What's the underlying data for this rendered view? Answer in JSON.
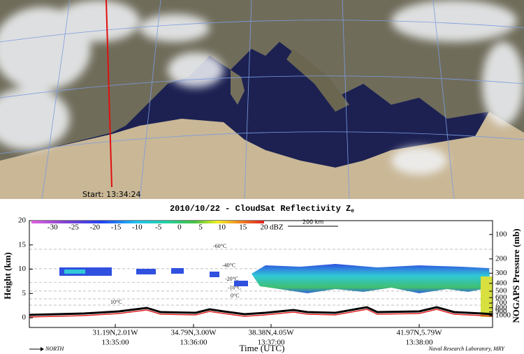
{
  "map": {
    "start_label": "Start: 13:34:24"
  },
  "chart_data": {
    "type": "profile",
    "title": "2010/10/22 - CloudSat Reflectivity Z",
    "title_subscript": "e",
    "ylabel": "Height (km)",
    "y2label": "NOGAPS Pressure (mb)",
    "xlabel": "Time (UTC)",
    "ylim": [
      -2,
      20
    ],
    "yticks": [
      0,
      5,
      10,
      15,
      20
    ],
    "y2scale": "log",
    "y2lim": [
      1400,
      67.5
    ],
    "y2ticks": [
      100,
      200,
      300,
      400,
      500,
      600,
      700,
      800,
      900,
      1000
    ],
    "xticks": [
      {
        "time": "13:35:00",
        "location": "31.19N,2.01W"
      },
      {
        "time": "13:36:00",
        "location": "34.79N,3.00W"
      },
      {
        "time": "13:37:00",
        "location": "38.38N,4.05W"
      },
      {
        "time": "13:38:00",
        "location": "41.97N,5.79W"
      }
    ],
    "colorbar": {
      "lim": [
        -35,
        20
      ],
      "ticks": [
        -30,
        -25,
        -20,
        -15,
        -10,
        -5,
        0,
        5,
        10,
        15,
        20
      ],
      "unit": "dBZ"
    },
    "scale_bar": "200 km",
    "isotherms": [
      {
        "label": "-60°C",
        "height": 14.1
      },
      {
        "label": "-40°C",
        "height": 10.1
      },
      {
        "label": "-20°C",
        "height": 7.3
      },
      {
        "label": "-10°C",
        "height": 5.5
      },
      {
        "label": "0°C",
        "height": 3.9
      },
      {
        "label": "10°C",
        "height": 2.6
      }
    ],
    "direction": "NORTH",
    "credit": "Naval Research Laboratory, MRY"
  }
}
